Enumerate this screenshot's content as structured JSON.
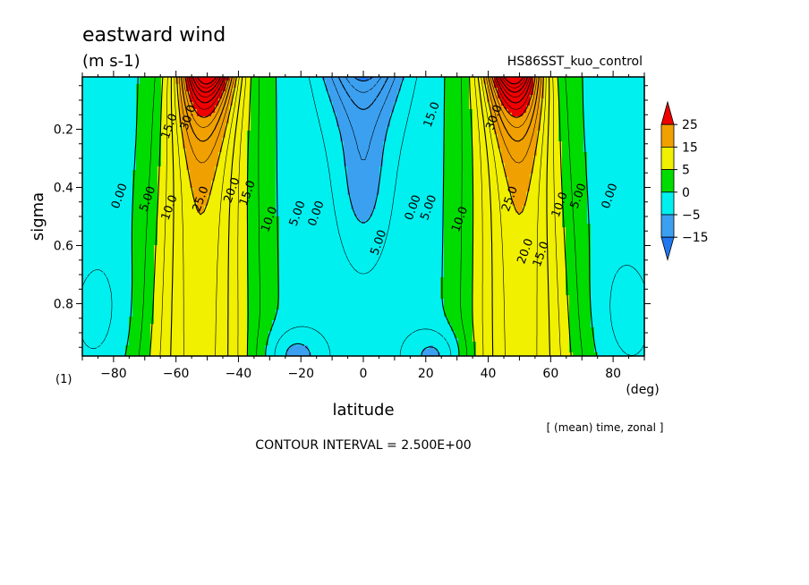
{
  "header": {
    "title": "eastward wind",
    "units": "(m s-1)",
    "run_name": "HS86SST_kuo_control"
  },
  "footer": {
    "mean_note": "[ (mean) time, zonal ]",
    "contour_interval": "CONTOUR INTERVAL = 2.500E+00",
    "panel_index": "(1)"
  },
  "colors": {
    "c_lt_m15": "#1e78f0",
    "c_m15_m5": "#3ca0f0",
    "c_m5_0": "#00f0f0",
    "c_0_5": "#00dc00",
    "c_5_15": "#f0f000",
    "c_15_25": "#f0a000",
    "c_gt_25": "#f00000"
  },
  "chart_data": {
    "type": "heatmap",
    "title": "eastward wind",
    "units": "(m s-1)",
    "xlabel": "latitude",
    "xunit": "(deg)",
    "ylabel": "sigma",
    "xlim": [
      -90,
      90
    ],
    "ylim": [
      0.98,
      0.02
    ],
    "x_ticks": [
      -80,
      -60,
      -40,
      -20,
      0,
      20,
      40,
      60,
      80
    ],
    "x_tick_labels": [
      "−80",
      "−60",
      "−40",
      "−20",
      "0",
      "20",
      "40",
      "60",
      "80"
    ],
    "y_ticks": [
      0.2,
      0.4,
      0.6,
      0.8
    ],
    "y_tick_labels": [
      "0.2",
      "0.4",
      "0.6",
      "0.8"
    ],
    "contour_interval": 2.5,
    "colorbar": {
      "boundaries": [
        -15,
        -5,
        0,
        5,
        15,
        25
      ],
      "labels": [
        "25",
        "15",
        "5",
        "0",
        "−5",
        "−15"
      ]
    },
    "jets": [
      {
        "lat": -50,
        "sigma_core": 0.05,
        "peak": 37.5
      },
      {
        "lat": 48,
        "sigma_core": 0.05,
        "peak": 37.5
      }
    ],
    "contour_labels": [
      {
        "text": "15.0",
        "lat": -62,
        "sigma": 0.19
      },
      {
        "text": "30.0",
        "lat": -56,
        "sigma": 0.16
      },
      {
        "text": "0.00",
        "lat": -78,
        "sigma": 0.43
      },
      {
        "text": "5.00",
        "lat": -69,
        "sigma": 0.44
      },
      {
        "text": "10.0",
        "lat": -62,
        "sigma": 0.47
      },
      {
        "text": "25.0",
        "lat": -52,
        "sigma": 0.44
      },
      {
        "text": "20.0",
        "lat": -42,
        "sigma": 0.41
      },
      {
        "text": "15.0",
        "lat": -37,
        "sigma": 0.42
      },
      {
        "text": "10.0",
        "lat": -30,
        "sigma": 0.51
      },
      {
        "text": "5.00",
        "lat": -21,
        "sigma": 0.49
      },
      {
        "text": "0.00",
        "lat": -15,
        "sigma": 0.49
      },
      {
        "text": "5.00",
        "lat": 5,
        "sigma": 0.59
      },
      {
        "text": "0.00",
        "lat": 16,
        "sigma": 0.47
      },
      {
        "text": "5.00",
        "lat": 21,
        "sigma": 0.47
      },
      {
        "text": "10.0",
        "lat": 31,
        "sigma": 0.51
      },
      {
        "text": "15.0",
        "lat": 22,
        "sigma": 0.15
      },
      {
        "text": "30.0",
        "lat": 42,
        "sigma": 0.16
      },
      {
        "text": "25.0",
        "lat": 47,
        "sigma": 0.44
      },
      {
        "text": "20.0",
        "lat": 52,
        "sigma": 0.62
      },
      {
        "text": "15.0",
        "lat": 57,
        "sigma": 0.63
      },
      {
        "text": "10.0",
        "lat": 63,
        "sigma": 0.46
      },
      {
        "text": "5.00",
        "lat": 69,
        "sigma": 0.43
      },
      {
        "text": "0.00",
        "lat": 79,
        "sigma": 0.43
      }
    ]
  }
}
